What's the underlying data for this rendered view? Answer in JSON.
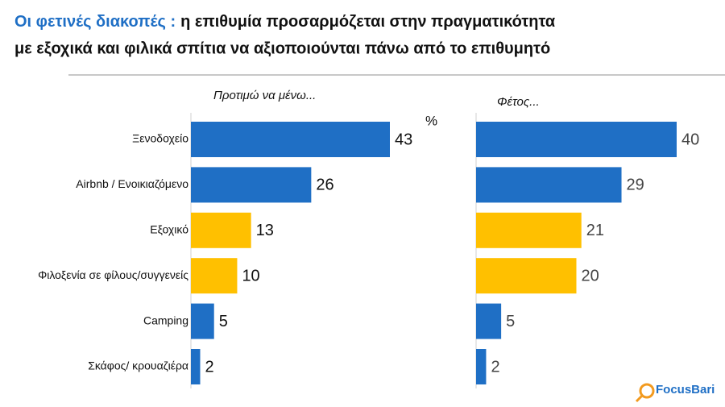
{
  "header": {
    "title_highlight": "Οι φετινές διακοπές :",
    "title": "η επιθυμία προσαρμόζεται στην πραγματικότητα",
    "title_line2": "με εξοχικά και φιλικά σπίτια να αξιοποιούνται πάνω από το επιθυμητό"
  },
  "logo": "FocusBari",
  "chart_data": [
    {
      "type": "bar",
      "orientation": "horizontal",
      "subtitle": "Προτιμώ να μένω...",
      "unit": "%",
      "categories": [
        "Ξενοδοχείο",
        "Airbnb / Ενοικιαζόμενο",
        "Εξοχικό",
        "Φιλοξενία σε φίλους/συγγενείς",
        "Camping",
        "Σκάφος/ κρουαζιέρα"
      ],
      "values": [
        43,
        26,
        13,
        10,
        5,
        2
      ],
      "colors": [
        "#1f6fc5",
        "#1f6fc5",
        "#ffc000",
        "#ffc000",
        "#1f6fc5",
        "#1f6fc5"
      ]
    },
    {
      "type": "bar",
      "orientation": "horizontal",
      "subtitle": "Φέτος...",
      "values": [
        40,
        29,
        21,
        20,
        5,
        2
      ],
      "colors": [
        "#1f6fc5",
        "#1f6fc5",
        "#ffc000",
        "#ffc000",
        "#1f6fc5",
        "#1f6fc5"
      ]
    }
  ]
}
